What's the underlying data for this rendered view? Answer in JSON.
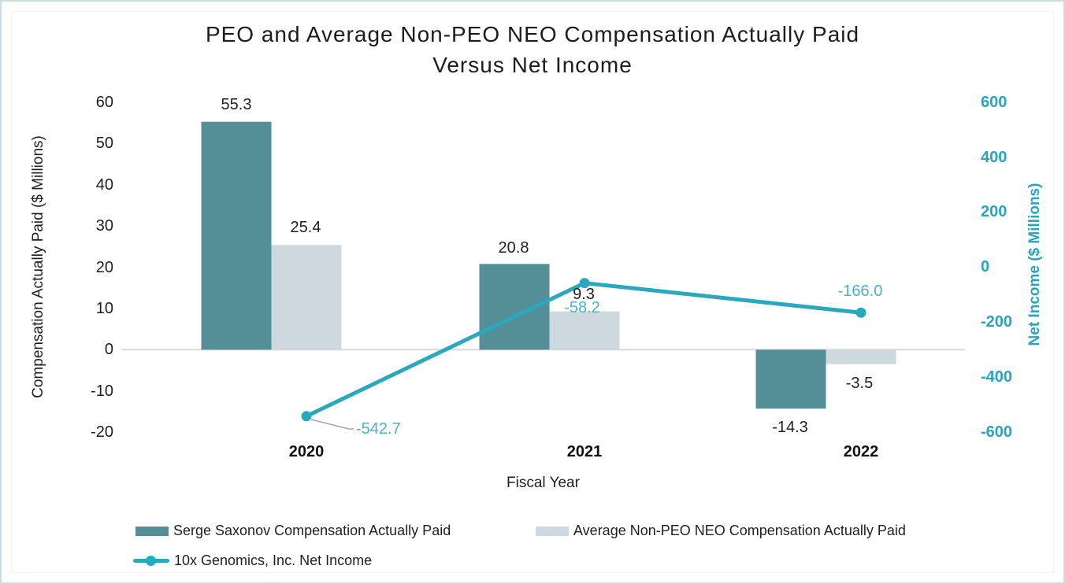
{
  "title": {
    "line1": "PEO and Average Non-PEO NEO Compensation Actually Paid",
    "line2": "Versus Net Income"
  },
  "chart_data": {
    "type": "bar+line",
    "categories": [
      "2020",
      "2021",
      "2022"
    ],
    "series": [
      {
        "name": "Serge Saxonov Compensation Actually Paid",
        "type": "bar",
        "axis": "left",
        "color": "#548E96",
        "values": [
          55.3,
          20.8,
          -14.3
        ],
        "labels": [
          "55.3",
          "20.8",
          "-14.3"
        ]
      },
      {
        "name": "Average Non-PEO NEO Compensation Actually Paid",
        "type": "bar",
        "axis": "left",
        "color": "#CDD9DE",
        "values": [
          25.4,
          9.3,
          -3.5
        ],
        "labels": [
          "25.4",
          "9.3",
          "-3.5"
        ]
      },
      {
        "name": "10x Genomics, Inc. Net Income",
        "type": "line",
        "axis": "right",
        "color": "#2AA8BD",
        "values": [
          -542.7,
          -58.2,
          -166.0
        ],
        "labels": [
          "-542.7",
          "-58.2",
          "-166.0"
        ]
      }
    ],
    "left_axis": {
      "label": "Compensation Actually Paid ($ Millions)",
      "min": -20,
      "max": 60,
      "ticks": [
        60,
        50,
        40,
        30,
        20,
        10,
        0,
        -10,
        -20
      ]
    },
    "right_axis": {
      "label": "Net Income ($ Millions)",
      "min": -600,
      "max": 600,
      "ticks": [
        600,
        400,
        200,
        0,
        -200,
        -400,
        -600
      ]
    },
    "xlabel": "Fiscal Year",
    "grid": "zero-line-only",
    "legend_position": "bottom-left",
    "colors": {
      "gridline": "#D9D9D9",
      "leader_line": "#A6A6A6",
      "right_axis_text": "#2AA4B9",
      "line_label_text": "#4BB2C5",
      "frame_border": "#CBDCE3"
    }
  }
}
